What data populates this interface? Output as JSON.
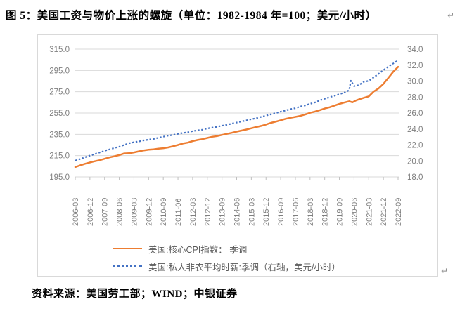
{
  "title": {
    "text": "图 5：美国工资与物价上涨的螺旋（单位：1982-1984 年=100；美元/小时）"
  },
  "source": {
    "text": "资料来源：美国劳工部；WIND；中银证券"
  },
  "artifacts": {
    "title_mark": "↵",
    "chart_mark": "↵"
  },
  "colors": {
    "cpi_line": "#ED7D31",
    "wage_line": "#4472C4",
    "gridline": "#D9D9D9",
    "axis_label": "#7F7F7F",
    "tick_mark": "#BFBFBF",
    "box_border": "#D9D9D9",
    "legend_text": "#595959"
  },
  "chart_data": {
    "type": "line",
    "title": "美国工资与物价上涨的螺旋",
    "grid": true,
    "legend_position": "bottom",
    "left_axis": {
      "range": [
        195,
        315
      ],
      "tick_labels": [
        "315.0",
        "295.0",
        "275.0",
        "255.0",
        "235.0",
        "215.0",
        "195.0"
      ],
      "ticks": [
        315,
        295,
        275,
        255,
        235,
        215,
        195
      ]
    },
    "right_axis": {
      "range": [
        18,
        34
      ],
      "tick_labels": [
        "34.0",
        "32.0",
        "30.0",
        "28.0",
        "26.0",
        "24.0",
        "22.0",
        "20.0",
        "18.0"
      ],
      "ticks": [
        34,
        32,
        30,
        28,
        26,
        24,
        22,
        20,
        18
      ]
    },
    "x_tick_labels": [
      "2006-03",
      "2006-12",
      "2007-09",
      "2008-06",
      "2009-03",
      "2009-12",
      "2010-09",
      "2011-06",
      "2012-03",
      "2012-12",
      "2013-09",
      "2014-06",
      "2015-03",
      "2015-12",
      "2016-09",
      "2017-06",
      "2018-03",
      "2018-12",
      "2019-09",
      "2020-06",
      "2021-03",
      "2021-12",
      "2022-09"
    ],
    "x_range": [
      "2006-03",
      "2022-09"
    ],
    "series": [
      {
        "name": "美国:核心CPI指数： 季调",
        "axis": "left",
        "color": "#ED7D31",
        "style": "solid",
        "points": [
          [
            "2006-03",
            204.2
          ],
          [
            "2006-06",
            205.9
          ],
          [
            "2006-09",
            207.3
          ],
          [
            "2006-12",
            208.6
          ],
          [
            "2007-03",
            209.7
          ],
          [
            "2007-06",
            210.7
          ],
          [
            "2007-09",
            212.0
          ],
          [
            "2007-12",
            213.3
          ],
          [
            "2008-03",
            214.4
          ],
          [
            "2008-06",
            215.5
          ],
          [
            "2008-09",
            217.0
          ],
          [
            "2008-12",
            217.2
          ],
          [
            "2009-03",
            218.0
          ],
          [
            "2009-06",
            219.0
          ],
          [
            "2009-09",
            219.9
          ],
          [
            "2009-12",
            220.5
          ],
          [
            "2010-03",
            220.9
          ],
          [
            "2010-06",
            221.5
          ],
          [
            "2010-09",
            222.0
          ],
          [
            "2010-12",
            222.7
          ],
          [
            "2011-03",
            223.8
          ],
          [
            "2011-06",
            225.0
          ],
          [
            "2011-09",
            226.4
          ],
          [
            "2011-12",
            227.2
          ],
          [
            "2012-03",
            228.6
          ],
          [
            "2012-06",
            229.7
          ],
          [
            "2012-09",
            230.5
          ],
          [
            "2012-12",
            231.6
          ],
          [
            "2013-03",
            232.7
          ],
          [
            "2013-06",
            233.4
          ],
          [
            "2013-09",
            234.4
          ],
          [
            "2013-12",
            235.4
          ],
          [
            "2014-03",
            236.4
          ],
          [
            "2014-06",
            237.5
          ],
          [
            "2014-09",
            238.5
          ],
          [
            "2014-12",
            239.5
          ],
          [
            "2015-03",
            240.7
          ],
          [
            "2015-06",
            241.8
          ],
          [
            "2015-09",
            242.9
          ],
          [
            "2015-12",
            244.2
          ],
          [
            "2016-03",
            245.8
          ],
          [
            "2016-06",
            246.9
          ],
          [
            "2016-09",
            248.2
          ],
          [
            "2016-12",
            249.5
          ],
          [
            "2017-03",
            250.5
          ],
          [
            "2017-06",
            251.4
          ],
          [
            "2017-09",
            252.3
          ],
          [
            "2017-12",
            253.6
          ],
          [
            "2018-03",
            255.2
          ],
          [
            "2018-06",
            256.4
          ],
          [
            "2018-09",
            257.7
          ],
          [
            "2018-12",
            259.2
          ],
          [
            "2019-03",
            260.4
          ],
          [
            "2019-06",
            262.0
          ],
          [
            "2019-09",
            263.5
          ],
          [
            "2019-12",
            264.8
          ],
          [
            "2020-03",
            266.0
          ],
          [
            "2020-05",
            265.0
          ],
          [
            "2020-07",
            266.7
          ],
          [
            "2020-09",
            267.8
          ],
          [
            "2020-12",
            269.3
          ],
          [
            "2021-03",
            270.6
          ],
          [
            "2021-06",
            275.1
          ],
          [
            "2021-09",
            278.1
          ],
          [
            "2021-12",
            282.3
          ],
          [
            "2022-03",
            288.0
          ],
          [
            "2022-06",
            293.7
          ],
          [
            "2022-09",
            298.4
          ]
        ]
      },
      {
        "name": "美国:私人非农平均时薪:季调（右轴，美元/小时）",
        "axis": "right",
        "color": "#4472C4",
        "style": "dotted",
        "points": [
          [
            "2006-03",
            20.04
          ],
          [
            "2006-06",
            20.23
          ],
          [
            "2006-09",
            20.46
          ],
          [
            "2006-12",
            20.66
          ],
          [
            "2007-03",
            20.87
          ],
          [
            "2007-06",
            21.06
          ],
          [
            "2007-09",
            21.27
          ],
          [
            "2007-12",
            21.45
          ],
          [
            "2008-03",
            21.62
          ],
          [
            "2008-06",
            21.79
          ],
          [
            "2008-09",
            22.0
          ],
          [
            "2008-12",
            22.21
          ],
          [
            "2009-03",
            22.34
          ],
          [
            "2009-06",
            22.44
          ],
          [
            "2009-09",
            22.57
          ],
          [
            "2009-12",
            22.67
          ],
          [
            "2010-03",
            22.76
          ],
          [
            "2010-06",
            22.9
          ],
          [
            "2010-09",
            23.04
          ],
          [
            "2010-12",
            23.17
          ],
          [
            "2011-03",
            23.26
          ],
          [
            "2011-06",
            23.39
          ],
          [
            "2011-09",
            23.5
          ],
          [
            "2011-12",
            23.58
          ],
          [
            "2012-03",
            23.73
          ],
          [
            "2012-06",
            23.83
          ],
          [
            "2012-09",
            23.91
          ],
          [
            "2012-12",
            24.07
          ],
          [
            "2013-03",
            24.17
          ],
          [
            "2013-06",
            24.27
          ],
          [
            "2013-09",
            24.41
          ],
          [
            "2013-12",
            24.52
          ],
          [
            "2014-03",
            24.67
          ],
          [
            "2014-06",
            24.8
          ],
          [
            "2014-09",
            24.94
          ],
          [
            "2014-12",
            25.08
          ],
          [
            "2015-03",
            25.23
          ],
          [
            "2015-06",
            25.34
          ],
          [
            "2015-09",
            25.52
          ],
          [
            "2015-12",
            25.67
          ],
          [
            "2016-03",
            25.85
          ],
          [
            "2016-06",
            25.99
          ],
          [
            "2016-09",
            26.17
          ],
          [
            "2016-12",
            26.32
          ],
          [
            "2017-03",
            26.48
          ],
          [
            "2017-06",
            26.61
          ],
          [
            "2017-09",
            26.81
          ],
          [
            "2017-12",
            26.95
          ],
          [
            "2018-03",
            27.15
          ],
          [
            "2018-06",
            27.33
          ],
          [
            "2018-09",
            27.57
          ],
          [
            "2018-12",
            27.79
          ],
          [
            "2019-03",
            27.97
          ],
          [
            "2019-06",
            28.17
          ],
          [
            "2019-09",
            28.36
          ],
          [
            "2019-12",
            28.56
          ],
          [
            "2020-03",
            28.86
          ],
          [
            "2020-04",
            30.04
          ],
          [
            "2020-05",
            29.74
          ],
          [
            "2020-06",
            29.37
          ],
          [
            "2020-09",
            29.5
          ],
          [
            "2020-12",
            29.92
          ],
          [
            "2021-03",
            30.02
          ],
          [
            "2021-06",
            30.46
          ],
          [
            "2021-09",
            30.9
          ],
          [
            "2021-12",
            31.36
          ],
          [
            "2022-03",
            31.81
          ],
          [
            "2022-06",
            32.2
          ],
          [
            "2022-09",
            32.6
          ]
        ]
      }
    ]
  }
}
